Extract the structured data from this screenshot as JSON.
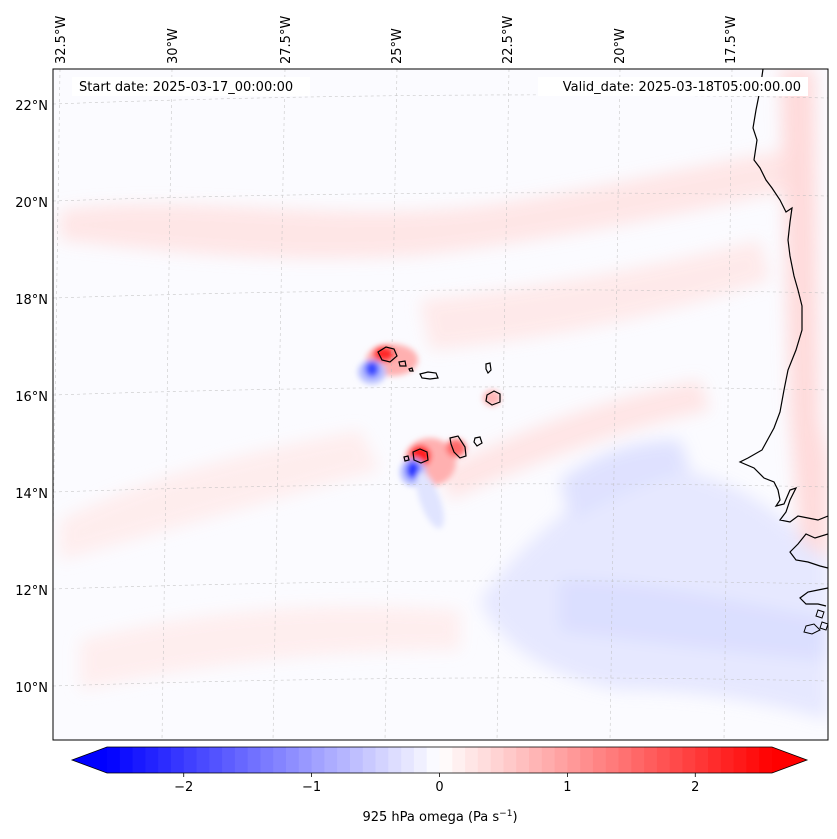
{
  "figure": {
    "start_label": "Start date: 2025-03-17_00:00:00",
    "valid_label": "Valid_date: 2025-03-18T05:00:00.00",
    "colorbar_label": "925 hPa omega (Pa s",
    "colorbar_label_sup": "−1",
    "colorbar_label_end": ")"
  },
  "axes": {
    "lon_labels": [
      "32.5°W",
      "30°W",
      "27.5°W",
      "25°W",
      "22.5°W",
      "20°W",
      "17.5°W"
    ],
    "lat_labels": [
      "22°N",
      "20°N",
      "18°N",
      "16°N",
      "14°N",
      "12°N",
      "10°N"
    ]
  },
  "colorbar": {
    "min": -2.6,
    "max": 2.6,
    "ticks": [
      -2,
      -1,
      0,
      1,
      2
    ],
    "tick_labels": [
      "−2",
      "−1",
      "0",
      "1",
      "2"
    ],
    "colormap": "bwr",
    "extend": "both",
    "color_min": "#0000ff",
    "color_mid": "#ffffff",
    "color_max": "#ff0000"
  },
  "map": {
    "coastline_color": "#000000",
    "gridline_color": "#bbbbbb"
  }
}
